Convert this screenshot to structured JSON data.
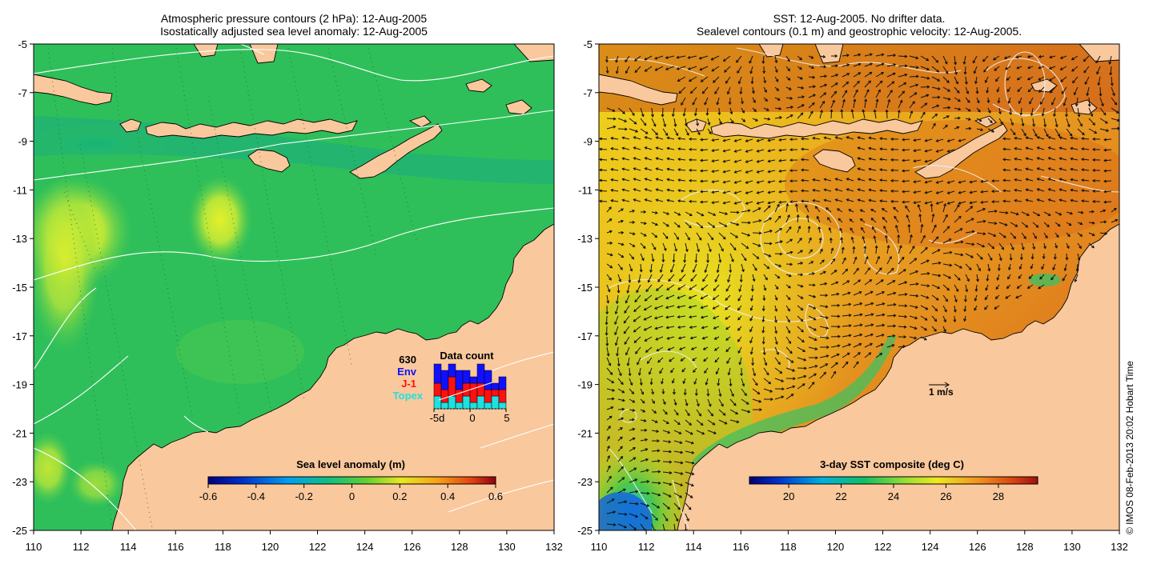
{
  "left_panel": {
    "title_line1": "Atmospheric pressure contours (2 hPa): 12-Aug-2005",
    "title_line2": "Isostatically adjusted sea level anomaly: 12-Aug-2005",
    "x_ticks": [
      "110",
      "112",
      "114",
      "116",
      "118",
      "120",
      "122",
      "124",
      "126",
      "128",
      "130",
      "132"
    ],
    "y_ticks": [
      "-5",
      "-7",
      "-9",
      "-11",
      "-13",
      "-15",
      "-17",
      "-19",
      "-21",
      "-23",
      "-25"
    ],
    "colorbar": {
      "title": "Sea level anomaly (m)",
      "labels": [
        "-0.6",
        "-0.4",
        "-0.2",
        "0",
        "0.2",
        "0.4",
        "0.6"
      ],
      "range": [
        -0.6,
        0.6
      ]
    },
    "data_count": {
      "title": "Data count",
      "total": "630",
      "series": [
        {
          "name": "Env",
          "color": "#1010ff"
        },
        {
          "name": "J-1",
          "color": "#ff1010"
        },
        {
          "name": "Topex",
          "color": "#20e0e0"
        }
      ],
      "x_labels": [
        "-5d",
        "0",
        "5"
      ],
      "bars": [
        {
          "Topex": 2,
          "J-1": 2,
          "Env": 3
        },
        {
          "Topex": 1,
          "J-1": 2,
          "Env": 3
        },
        {
          "Topex": 2,
          "J-1": 3,
          "Env": 2
        },
        {
          "Topex": 1,
          "J-1": 2,
          "Env": 3
        },
        {
          "Topex": 2,
          "J-1": 2,
          "Env": 2
        },
        {
          "Topex": 1,
          "J-1": 3,
          "Env": 1
        },
        {
          "Topex": 2,
          "J-1": 2,
          "Env": 3
        },
        {
          "Topex": 1,
          "J-1": 2,
          "Env": 3
        },
        {
          "Topex": 2,
          "J-1": 1,
          "Env": 1
        },
        {
          "Topex": 1,
          "J-1": 2,
          "Env": 2
        }
      ]
    }
  },
  "right_panel": {
    "title_line1": "SST: 12-Aug-2005. No drifter data.",
    "title_line2": "Sealevel contours (0.1 m) and geostrophic velocity: 12-Aug-2005.",
    "x_ticks": [
      "110",
      "112",
      "114",
      "116",
      "118",
      "120",
      "122",
      "124",
      "126",
      "128",
      "130",
      "132"
    ],
    "y_ticks": [
      "-5",
      "-7",
      "-9",
      "-11",
      "-13",
      "-15",
      "-17",
      "-19",
      "-21",
      "-23",
      "-25"
    ],
    "colorbar": {
      "title": "3-day SST composite (deg C)",
      "labels": [
        "20",
        "22",
        "24",
        "26",
        "28"
      ],
      "range": [
        18.5,
        29.5
      ]
    },
    "scale_label": "1 m/s"
  },
  "credit": "© IMOS 08-Feb-2013 20:02 Hobart Time",
  "colors": {
    "land": "#f9c89c",
    "sla_ocean": "#2fbf5a",
    "sst_warm": "#e8781e",
    "sst_cool": "#1f8fe0"
  }
}
